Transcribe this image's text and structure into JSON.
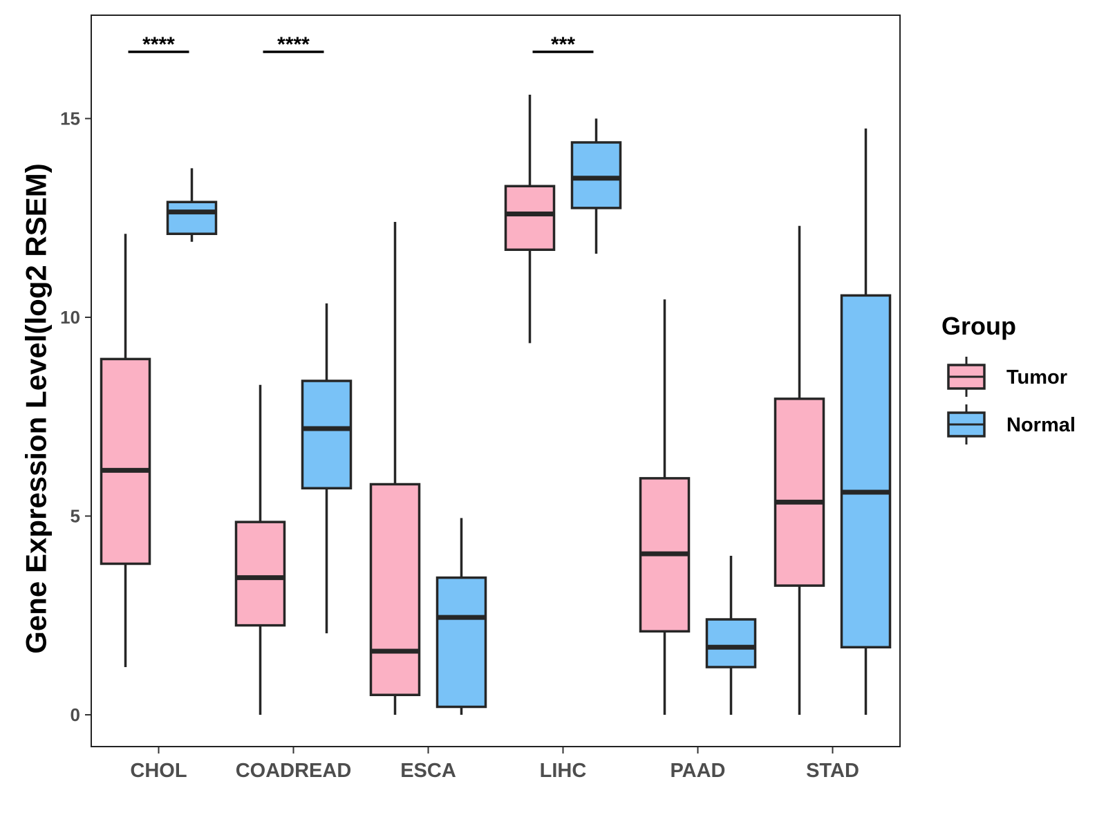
{
  "chart_data": {
    "type": "boxplot",
    "title": "",
    "xlabel": "",
    "ylabel": "Gene Expression Level(log2 RSEM)",
    "ylim": [
      -0.8,
      17.6
    ],
    "yticks": [
      0,
      5,
      10,
      15
    ],
    "ytick_labels": [
      "0",
      "5",
      "10",
      "15"
    ],
    "categories": [
      "CHOL",
      "COADREAD",
      "ESCA",
      "LIHC",
      "PAAD",
      "STAD"
    ],
    "legend": {
      "title": "Group",
      "position": "right",
      "entries": [
        {
          "name": "Tumor",
          "color": "#fbb1c4"
        },
        {
          "name": "Normal",
          "color": "#79c2f7"
        }
      ]
    },
    "series": [
      {
        "name": "Tumor",
        "color": "#fbb1c4",
        "boxes": [
          {
            "category": "CHOL",
            "min": 1.2,
            "q1": 3.8,
            "median": 6.15,
            "q3": 8.95,
            "max": 12.1
          },
          {
            "category": "COADREAD",
            "min": 0.0,
            "q1": 2.25,
            "median": 3.45,
            "q3": 4.85,
            "max": 8.3
          },
          {
            "category": "ESCA",
            "min": 0.0,
            "q1": 0.5,
            "median": 1.6,
            "q3": 5.8,
            "max": 12.4
          },
          {
            "category": "LIHC",
            "min": 9.35,
            "q1": 11.7,
            "median": 12.6,
            "q3": 13.3,
            "max": 15.6
          },
          {
            "category": "PAAD",
            "min": 0.0,
            "q1": 2.1,
            "median": 4.05,
            "q3": 5.95,
            "max": 10.45
          },
          {
            "category": "STAD",
            "min": 0.0,
            "q1": 3.25,
            "median": 5.35,
            "q3": 7.95,
            "max": 12.3
          }
        ]
      },
      {
        "name": "Normal",
        "color": "#79c2f7",
        "boxes": [
          {
            "category": "CHOL",
            "min": 11.9,
            "q1": 12.1,
            "median": 12.65,
            "q3": 12.9,
            "max": 13.75
          },
          {
            "category": "COADREAD",
            "min": 2.05,
            "q1": 5.7,
            "median": 7.2,
            "q3": 8.4,
            "max": 10.35
          },
          {
            "category": "ESCA",
            "min": 0.0,
            "q1": 0.2,
            "median": 2.45,
            "q3": 3.45,
            "max": 4.95
          },
          {
            "category": "LIHC",
            "min": 11.6,
            "q1": 12.75,
            "median": 13.5,
            "q3": 14.4,
            "max": 15.0
          },
          {
            "category": "PAAD",
            "min": 0.0,
            "q1": 1.2,
            "median": 1.7,
            "q3": 2.4,
            "max": 4.0
          },
          {
            "category": "STAD",
            "min": 0.0,
            "q1": 1.7,
            "median": 5.6,
            "q3": 10.55,
            "max": 14.75
          }
        ]
      }
    ],
    "significance": [
      {
        "category": "CHOL",
        "label": "****"
      },
      {
        "category": "COADREAD",
        "label": "****"
      },
      {
        "category": "LIHC",
        "label": "***"
      }
    ]
  }
}
